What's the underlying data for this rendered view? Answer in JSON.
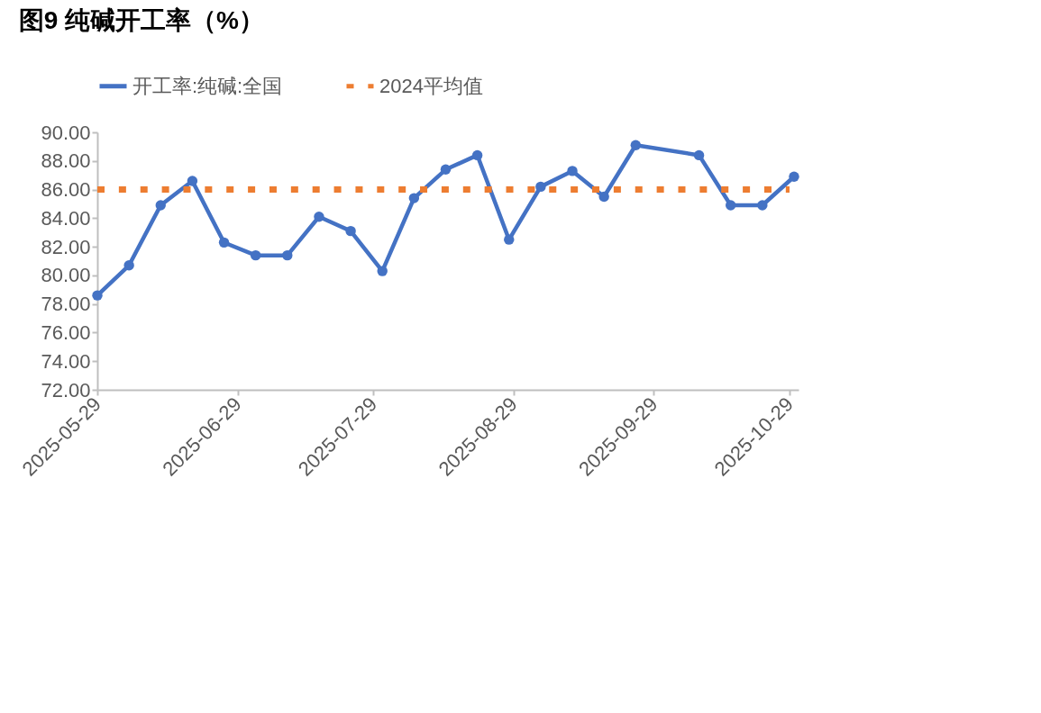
{
  "chart_data": {
    "type": "line",
    "title": "图9  纯碱开工率（%）",
    "x": [
      "2025-05-29",
      "2025-06-05",
      "2025-06-12",
      "2025-06-19",
      "2025-06-26",
      "2025-07-03",
      "2025-07-10",
      "2025-07-17",
      "2025-07-24",
      "2025-07-31",
      "2025-08-07",
      "2025-08-14",
      "2025-08-21",
      "2025-08-28",
      "2025-09-04",
      "2025-09-11",
      "2025-09-18",
      "2025-09-25",
      "2025-10-09",
      "2025-10-16",
      "2025-10-23",
      "2025-10-30"
    ],
    "series": [
      {
        "name": "开工率:纯碱:全国",
        "color": "#4472c4",
        "marker": "circle",
        "line_style": "solid",
        "values": [
          78.6,
          80.7,
          84.9,
          86.6,
          82.3,
          81.4,
          81.4,
          84.1,
          83.1,
          80.3,
          85.4,
          87.4,
          88.4,
          82.5,
          86.2,
          87.3,
          85.5,
          89.1,
          88.4,
          84.9,
          84.9,
          86.9
        ]
      },
      {
        "name": "2024平均值",
        "color": "#ed7d31",
        "marker": "none",
        "line_style": "dotted",
        "x": [
          "2025-05-29",
          "2025-10-29"
        ],
        "values": [
          86.0,
          86.0
        ]
      }
    ],
    "xlim": [
      "2025-05-29",
      "2025-10-31"
    ],
    "xticks": [
      "2025-05-29",
      "2025-06-29",
      "2025-07-29",
      "2025-08-29",
      "2025-09-29",
      "2025-10-29"
    ],
    "ylim": [
      72,
      90
    ],
    "yticks": [
      {
        "value": 72,
        "label": "72.00"
      },
      {
        "value": 74,
        "label": "74.00"
      },
      {
        "value": 76,
        "label": "76.00"
      },
      {
        "value": 78,
        "label": "78.00"
      },
      {
        "value": 80,
        "label": "80.00"
      },
      {
        "value": 82,
        "label": "82.00"
      },
      {
        "value": 84,
        "label": "84.00"
      },
      {
        "value": 86,
        "label": "86.00"
      },
      {
        "value": 88,
        "label": "88.00"
      },
      {
        "value": 90,
        "label": "90.00"
      }
    ],
    "grid": false,
    "legend": "top"
  }
}
